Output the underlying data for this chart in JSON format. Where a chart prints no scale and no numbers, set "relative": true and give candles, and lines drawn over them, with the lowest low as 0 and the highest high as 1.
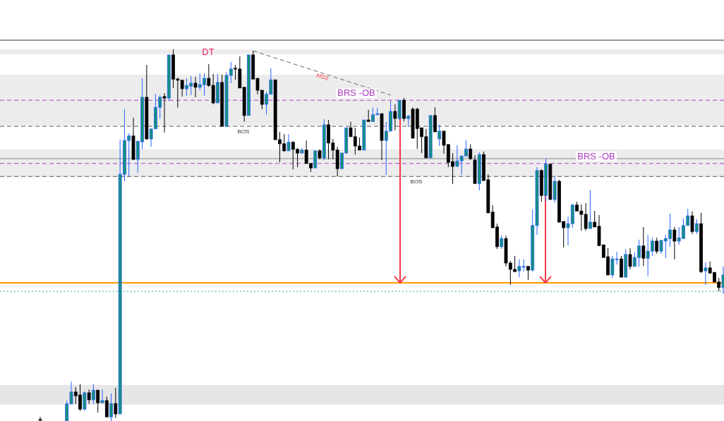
{
  "chart_data": {
    "type": "candlestick",
    "relative": true,
    "categories": [
      null,
      null,
      null,
      null,
      null,
      null,
      null,
      null,
      null,
      null,
      null,
      null,
      null,
      null,
      null,
      null,
      null,
      null,
      null,
      null,
      null,
      null,
      null,
      null,
      null,
      null,
      null,
      null,
      null,
      null,
      null,
      null,
      null,
      null,
      null,
      null,
      null,
      null,
      null,
      null,
      null,
      null,
      null,
      null,
      null,
      null,
      null,
      null,
      null,
      null,
      null,
      null,
      null,
      null,
      null,
      null,
      null,
      null,
      null,
      null,
      null,
      null,
      null,
      null,
      null,
      null,
      null,
      null,
      null,
      null,
      null,
      null,
      null,
      null,
      null,
      null,
      null,
      null,
      null,
      null,
      null,
      null,
      null,
      null,
      null,
      null,
      null,
      null,
      null,
      null,
      null,
      null,
      null,
      null,
      null,
      null,
      null,
      null,
      null,
      null,
      null,
      null,
      null,
      null,
      null,
      null,
      null,
      null,
      null,
      null,
      null,
      null,
      null,
      null,
      null,
      null,
      null,
      null,
      null,
      null,
      null,
      null,
      null,
      null,
      null,
      null,
      null,
      null,
      null,
      null,
      null,
      null,
      null,
      null,
      null,
      null,
      null,
      null,
      null,
      null,
      null,
      null,
      null,
      null,
      null,
      null,
      null,
      null,
      null,
      null,
      null,
      null,
      null,
      null,
      null
    ],
    "ohlc": [
      [
        0.004,
        0.011,
        0,
        0.002
      ],
      null,
      null,
      null,
      null,
      null,
      [
        0,
        0.055,
        0,
        0.046
      ],
      [
        0.046,
        0.106,
        0.046,
        0.078
      ],
      [
        0.078,
        0.091,
        0.046,
        0.068
      ],
      [
        0.07,
        0.099,
        0.027,
        0.032
      ],
      [
        0.032,
        0.08,
        0.028,
        0.076
      ],
      [
        0.076,
        0.085,
        0.046,
        0.057
      ],
      [
        0.057,
        0.099,
        0.046,
        0.083
      ],
      [
        0.083,
        0.083,
        0.023,
        0.049
      ],
      [
        0.049,
        0.085,
        0.049,
        0.055
      ],
      [
        0.055,
        0.066,
        0.011,
        0.011
      ],
      [
        0.011,
        0.074,
        0,
        0.047
      ],
      [
        0.047,
        0.089,
        0.008,
        0.019
      ],
      [
        0.019,
        0.757,
        0.019,
        0.664
      ],
      [
        0.664,
        0.839,
        0.645,
        0.755
      ],
      [
        0.755,
        0.774,
        0.657,
        0.767
      ],
      [
        0.767,
        0.816,
        0.702,
        0.704
      ],
      [
        0.704,
        0.753,
        0.668,
        0.753
      ],
      [
        0.751,
        0.922,
        0.731,
        0.871
      ],
      [
        0.871,
        0.958,
        0.757,
        0.759
      ],
      [
        0.759,
        0.786,
        0.738,
        0.786
      ],
      [
        0.786,
        0.88,
        0.786,
        0.844
      ],
      [
        0.844,
        0.877,
        0.814,
        0.871
      ],
      [
        0.873,
        0.882,
        0.776,
        0.869
      ],
      [
        0.869,
        0.985,
        0.861,
        0.985
      ],
      [
        0.985,
        1.0,
        0.896,
        0.92
      ],
      [
        0.92,
        0.924,
        0.843,
        0.917
      ],
      [
        0.917,
        0.917,
        0.873,
        0.894
      ],
      [
        0.894,
        0.922,
        0.875,
        0.903
      ],
      [
        0.901,
        0.928,
        0.877,
        0.909
      ],
      [
        0.909,
        0.926,
        0.871,
        0.898
      ],
      [
        0.898,
        0.935,
        0.89,
        0.905
      ],
      [
        0.905,
        0.935,
        0.875,
        0.922
      ],
      [
        0.922,
        0.96,
        0.899,
        0.903
      ],
      [
        0.903,
        0.934,
        0.852,
        0.856
      ],
      [
        0.856,
        0.934,
        0.856,
        0.911
      ],
      [
        0.911,
        0.932,
        0.793,
        0.793
      ],
      [
        0.793,
        0.939,
        0.793,
        0.93
      ],
      [
        0.93,
        0.966,
        0.909,
        0.947
      ],
      [
        0.949,
        0.958,
        0.918,
        0.947
      ],
      [
        0.947,
        0.981,
        0.896,
        0.896
      ],
      [
        0.898,
        0.898,
        0.805,
        0.822
      ],
      [
        0.822,
        0.985,
        0.822,
        0.985
      ],
      [
        0.985,
        0.996,
        0.92,
        0.92
      ],
      [
        0.922,
        0.922,
        0.879,
        0.89
      ],
      [
        0.89,
        0.89,
        0.839,
        0.852
      ],
      [
        0.852,
        0.886,
        0.824,
        0.879
      ],
      [
        0.879,
        0.949,
        0.879,
        0.918
      ],
      [
        0.918,
        0.918,
        0.757,
        0.757
      ],
      [
        0.757,
        0.778,
        0.696,
        0.746
      ],
      [
        0.746,
        0.772,
        0.725,
        0.727
      ],
      [
        0.727,
        0.772,
        0.727,
        0.75
      ],
      [
        0.75,
        0.753,
        0.677,
        0.731
      ],
      [
        0.731,
        0.734,
        0.683,
        0.721
      ],
      [
        0.721,
        0.734,
        0.721,
        0.729
      ],
      [
        0.729,
        0.755,
        0.693,
        0.693
      ],
      [
        0.693,
        0.693,
        0.67,
        0.681
      ],
      [
        0.681,
        0.727,
        0.681,
        0.727
      ],
      [
        0.727,
        0.731,
        0.704,
        0.708
      ],
      [
        0.708,
        0.812,
        0.702,
        0.797
      ],
      [
        0.797,
        0.81,
        0.704,
        0.748
      ],
      [
        0.748,
        0.759,
        0.704,
        0.729
      ],
      [
        0.729,
        0.738,
        0.658,
        0.679
      ],
      [
        0.679,
        0.721,
        0.679,
        0.721
      ],
      [
        0.721,
        0.789,
        0.721,
        0.789
      ],
      [
        0.789,
        0.805,
        0.765,
        0.765
      ],
      [
        0.765,
        0.789,
        0.717,
        0.74
      ],
      [
        0.74,
        0.763,
        0.729,
        0.729
      ],
      [
        0.729,
        0.81,
        0.729,
        0.81
      ],
      [
        0.81,
        0.837,
        0.806,
        0.806
      ],
      [
        0.806,
        0.843,
        0.806,
        0.824
      ],
      [
        0.824,
        0.843,
        0.824,
        0.827
      ],
      [
        0.827,
        0.827,
        0.702,
        0.755
      ],
      [
        0.755,
        0.805,
        0.662,
        0.78
      ],
      [
        0.78,
        0.861,
        0.78,
        0.833
      ],
      [
        0.833,
        0.852,
        0.782,
        0.814
      ],
      [
        0.814,
        0.863,
        0.81,
        0.863
      ],
      [
        0.863,
        0.869,
        0.806,
        0.814
      ],
      [
        0.814,
        0.824,
        0.791,
        0.82
      ],
      [
        0.839,
        0.844,
        0.761,
        0.761
      ],
      [
        0.839,
        0.843,
        0.732,
        0.787
      ],
      [
        0.789,
        0.789,
        0.721,
        0.765
      ],
      [
        0.765,
        0.786,
        0.708,
        0.708
      ],
      [
        0.708,
        0.822,
        0.708,
        0.822
      ],
      [
        0.822,
        0.844,
        0.778,
        0.778
      ],
      [
        0.759,
        0.797,
        0.74,
        0.78
      ],
      [
        0.78,
        0.78,
        0.719,
        0.742
      ],
      [
        0.744,
        0.744,
        0.683,
        0.696
      ],
      [
        0.698,
        0.721,
        0.638,
        0.685
      ],
      [
        0.685,
        0.742,
        0.685,
        0.7
      ],
      [
        0.7,
        0.715,
        0.662,
        0.713
      ],
      [
        0.713,
        0.755,
        0.713,
        0.732
      ],
      [
        0.732,
        0.744,
        0.702,
        0.706
      ],
      [
        0.702,
        0.715,
        0.639,
        0.639
      ],
      [
        0.639,
        0.723,
        0.62,
        0.717
      ],
      [
        0.717,
        0.725,
        0.647,
        0.647
      ],
      [
        0.649,
        0.664,
        0.56,
        0.56
      ],
      [
        0.562,
        0.581,
        0.52,
        0.52
      ],
      [
        0.522,
        0.531,
        0.463,
        0.469
      ],
      [
        0.469,
        0.499,
        0.463,
        0.491
      ],
      [
        0.491,
        0.499,
        0.416,
        0.425
      ],
      [
        0.425,
        0.431,
        0.366,
        0.408
      ],
      [
        0.408,
        0.444,
        0.402,
        0.402
      ],
      [
        0.404,
        0.435,
        0.387,
        0.416
      ],
      [
        0.414,
        0.435,
        0.402,
        0.416
      ],
      [
        0.416,
        0.416,
        0.38,
        0.406
      ],
      [
        0.406,
        0.569,
        0.402,
        0.526
      ],
      [
        0.526,
        0.683,
        0.501,
        0.674
      ],
      [
        0.674,
        0.677,
        0.59,
        0.607
      ],
      [
        0.607,
        0.706,
        0.592,
        0.691
      ],
      [
        0.691,
        0.691,
        0.596,
        0.596
      ],
      [
        0.596,
        0.66,
        0.588,
        0.645
      ],
      [
        0.645,
        0.649,
        0.535,
        0.535
      ],
      [
        0.537,
        0.537,
        0.467,
        0.52
      ],
      [
        0.52,
        0.55,
        0.472,
        0.531
      ],
      [
        0.531,
        0.584,
        0.52,
        0.581
      ],
      [
        0.581,
        0.59,
        0.565,
        0.565
      ],
      [
        0.565,
        0.583,
        0.512,
        0.556
      ],
      [
        0.556,
        0.586,
        0.512,
        0.518
      ],
      [
        0.518,
        0.622,
        0.518,
        0.535
      ],
      [
        0.535,
        0.565,
        0.522,
        0.522
      ],
      [
        0.524,
        0.554,
        0.472,
        0.472
      ],
      [
        0.474,
        0.474,
        0.44,
        0.44
      ],
      [
        0.442,
        0.465,
        0.393,
        0.393
      ],
      [
        0.393,
        0.444,
        0.385,
        0.436
      ],
      [
        0.435,
        0.455,
        0.421,
        0.436
      ],
      [
        0.436,
        0.444,
        0.387,
        0.387
      ],
      [
        0.387,
        0.463,
        0.387,
        0.448
      ],
      [
        0.448,
        0.465,
        0.408,
        0.416
      ],
      [
        0.416,
        0.454,
        0.416,
        0.44
      ],
      [
        0.44,
        0.488,
        0.416,
        0.471
      ],
      [
        0.471,
        0.522,
        0.417,
        0.438
      ],
      [
        0.438,
        0.501,
        0.389,
        0.457
      ],
      [
        0.457,
        0.493,
        0.444,
        0.484
      ],
      [
        0.484,
        0.493,
        0.45,
        0.457
      ],
      [
        0.457,
        0.486,
        0.45,
        0.486
      ],
      [
        0.484,
        0.501,
        0.438,
        0.491
      ],
      [
        0.491,
        0.558,
        0.469,
        0.514
      ],
      [
        0.514,
        0.522,
        0.435,
        0.484
      ],
      [
        0.484,
        0.522,
        0.474,
        0.493
      ],
      [
        0.491,
        0.545,
        0.491,
        0.526
      ],
      [
        0.526,
        0.571,
        0.526,
        0.552
      ],
      [
        0.552,
        0.564,
        0.503,
        0.51
      ],
      [
        0.51,
        0.543,
        0.503,
        0.531
      ],
      [
        0.531,
        0.56,
        0.398,
        0.402
      ],
      [
        0.404,
        0.427,
        0.366,
        0.412
      ],
      [
        0.412,
        0.429,
        0.398,
        0.398
      ],
      [
        0.4,
        0.4,
        0.374,
        0.374
      ],
      [
        0.374,
        0.385,
        0.349,
        0.359
      ],
      [
        0.359,
        0.416,
        0.342,
        0.393
      ]
    ],
    "series": [
      {
        "type": "line",
        "name": "MSS",
        "color": "#666666",
        "line_style": "dashed",
        "values": [
          null,
          null,
          null,
          null,
          null,
          null,
          null,
          null,
          null,
          null,
          null,
          null,
          null,
          null,
          null,
          null,
          null,
          null,
          null,
          null,
          null,
          null,
          null,
          null,
          null,
          null,
          null,
          null,
          null,
          null,
          null,
          null,
          null,
          null,
          null,
          null,
          null,
          null,
          null,
          null,
          null,
          null,
          null,
          null,
          null,
          null,
          null,
          null,
          0.996,
          null,
          null,
          null,
          null,
          null,
          null,
          null,
          null,
          null,
          null,
          null,
          null,
          null,
          null,
          null,
          null,
          null,
          null,
          null,
          null,
          null,
          null,
          null,
          null,
          null,
          null,
          null,
          null,
          null,
          null,
          0.877,
          null,
          null,
          null,
          null,
          null,
          null,
          null,
          null,
          null,
          null,
          null,
          null,
          null,
          null,
          null,
          null,
          null,
          null,
          null,
          null,
          null,
          null,
          null,
          null,
          null,
          null,
          null,
          null,
          null,
          null,
          null,
          null,
          null,
          null,
          null,
          null,
          null,
          null,
          null,
          null,
          null,
          null,
          null,
          null,
          null,
          null,
          null,
          null,
          null,
          null,
          null,
          null,
          null,
          null,
          null,
          null,
          null,
          null,
          null,
          null,
          null,
          null,
          null,
          null,
          null,
          null,
          null,
          null,
          null,
          null,
          null,
          null,
          null,
          null,
          null
        ]
      }
    ],
    "ref_lines": [
      {
        "axis": "y",
        "value": 0.863,
        "label": "BRS -OB",
        "color": "#b23cc9",
        "line_style": "dashed"
      },
      {
        "axis": "y",
        "value": 0.693,
        "label": "BRS -OB",
        "color": "#b23cc9",
        "line_style": "dashed"
      },
      {
        "axis": "y",
        "value": 0.793,
        "label": "BOS",
        "color": "#555555",
        "line_style": "dashed"
      },
      {
        "axis": "y",
        "value": 0.658,
        "label": "BOS",
        "color": "#555555",
        "line_style": "dashed"
      },
      {
        "axis": "y",
        "value": 0.372,
        "color": "#ff9800",
        "line_style": "solid"
      },
      {
        "axis": "y",
        "value": 0.349,
        "color": "#26a69a",
        "line_style": "dotted"
      },
      {
        "axis": "y",
        "value": 0.706,
        "color": "#888888",
        "line_style": "solid"
      }
    ],
    "bands": [
      {
        "axis": "y",
        "from": 0.987,
        "to": 1.0,
        "label": "DT",
        "color": "#ececec"
      },
      {
        "axis": "y",
        "from": 0.795,
        "to": 0.932,
        "color": "#ececec"
      },
      {
        "axis": "y",
        "from": 0.657,
        "to": 0.731,
        "color": "#ececec"
      },
      {
        "axis": "y",
        "from": 0.044,
        "to": 0.097,
        "color": "#e6e6e6"
      }
    ]
  }
}
